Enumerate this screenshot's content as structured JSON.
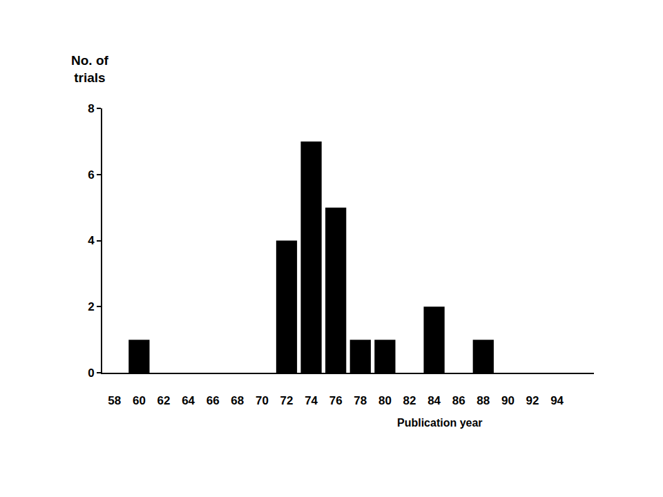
{
  "chart_data": {
    "type": "bar",
    "x": [
      60,
      72,
      74,
      76,
      78,
      80,
      84,
      88
    ],
    "values": [
      1,
      4,
      7,
      5,
      1,
      1,
      2,
      1
    ],
    "color": "#000000",
    "xlabel": "Publication year",
    "ylabel": "No. of trials",
    "xlim": [
      57,
      97
    ],
    "xticks": [
      58,
      60,
      62,
      64,
      66,
      68,
      70,
      72,
      74,
      76,
      78,
      80,
      82,
      84,
      86,
      88,
      90,
      92,
      94
    ],
    "ylim": [
      0,
      8
    ],
    "yticks": [
      0,
      2,
      4,
      6,
      8
    ],
    "grid": false
  }
}
